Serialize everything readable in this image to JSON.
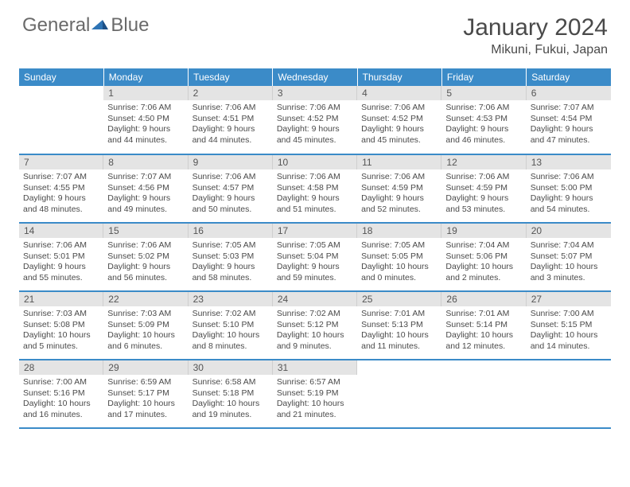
{
  "brand": {
    "part1": "General",
    "part2": "Blue"
  },
  "title": "January 2024",
  "location": "Mikuni, Fukui, Japan",
  "colors": {
    "header_bg": "#3b8bc8",
    "header_text": "#ffffff",
    "daynum_bg": "#e4e4e4",
    "row_border": "#3b8bc8",
    "body_text": "#4a4a4a"
  },
  "weekdays": [
    "Sunday",
    "Monday",
    "Tuesday",
    "Wednesday",
    "Thursday",
    "Friday",
    "Saturday"
  ],
  "weeks": [
    [
      {
        "n": "",
        "s": "",
        "t": "",
        "d": ""
      },
      {
        "n": "1",
        "s": "Sunrise: 7:06 AM",
        "t": "Sunset: 4:50 PM",
        "d": "Daylight: 9 hours and 44 minutes."
      },
      {
        "n": "2",
        "s": "Sunrise: 7:06 AM",
        "t": "Sunset: 4:51 PM",
        "d": "Daylight: 9 hours and 44 minutes."
      },
      {
        "n": "3",
        "s": "Sunrise: 7:06 AM",
        "t": "Sunset: 4:52 PM",
        "d": "Daylight: 9 hours and 45 minutes."
      },
      {
        "n": "4",
        "s": "Sunrise: 7:06 AM",
        "t": "Sunset: 4:52 PM",
        "d": "Daylight: 9 hours and 45 minutes."
      },
      {
        "n": "5",
        "s": "Sunrise: 7:06 AM",
        "t": "Sunset: 4:53 PM",
        "d": "Daylight: 9 hours and 46 minutes."
      },
      {
        "n": "6",
        "s": "Sunrise: 7:07 AM",
        "t": "Sunset: 4:54 PM",
        "d": "Daylight: 9 hours and 47 minutes."
      }
    ],
    [
      {
        "n": "7",
        "s": "Sunrise: 7:07 AM",
        "t": "Sunset: 4:55 PM",
        "d": "Daylight: 9 hours and 48 minutes."
      },
      {
        "n": "8",
        "s": "Sunrise: 7:07 AM",
        "t": "Sunset: 4:56 PM",
        "d": "Daylight: 9 hours and 49 minutes."
      },
      {
        "n": "9",
        "s": "Sunrise: 7:06 AM",
        "t": "Sunset: 4:57 PM",
        "d": "Daylight: 9 hours and 50 minutes."
      },
      {
        "n": "10",
        "s": "Sunrise: 7:06 AM",
        "t": "Sunset: 4:58 PM",
        "d": "Daylight: 9 hours and 51 minutes."
      },
      {
        "n": "11",
        "s": "Sunrise: 7:06 AM",
        "t": "Sunset: 4:59 PM",
        "d": "Daylight: 9 hours and 52 minutes."
      },
      {
        "n": "12",
        "s": "Sunrise: 7:06 AM",
        "t": "Sunset: 4:59 PM",
        "d": "Daylight: 9 hours and 53 minutes."
      },
      {
        "n": "13",
        "s": "Sunrise: 7:06 AM",
        "t": "Sunset: 5:00 PM",
        "d": "Daylight: 9 hours and 54 minutes."
      }
    ],
    [
      {
        "n": "14",
        "s": "Sunrise: 7:06 AM",
        "t": "Sunset: 5:01 PM",
        "d": "Daylight: 9 hours and 55 minutes."
      },
      {
        "n": "15",
        "s": "Sunrise: 7:06 AM",
        "t": "Sunset: 5:02 PM",
        "d": "Daylight: 9 hours and 56 minutes."
      },
      {
        "n": "16",
        "s": "Sunrise: 7:05 AM",
        "t": "Sunset: 5:03 PM",
        "d": "Daylight: 9 hours and 58 minutes."
      },
      {
        "n": "17",
        "s": "Sunrise: 7:05 AM",
        "t": "Sunset: 5:04 PM",
        "d": "Daylight: 9 hours and 59 minutes."
      },
      {
        "n": "18",
        "s": "Sunrise: 7:05 AM",
        "t": "Sunset: 5:05 PM",
        "d": "Daylight: 10 hours and 0 minutes."
      },
      {
        "n": "19",
        "s": "Sunrise: 7:04 AM",
        "t": "Sunset: 5:06 PM",
        "d": "Daylight: 10 hours and 2 minutes."
      },
      {
        "n": "20",
        "s": "Sunrise: 7:04 AM",
        "t": "Sunset: 5:07 PM",
        "d": "Daylight: 10 hours and 3 minutes."
      }
    ],
    [
      {
        "n": "21",
        "s": "Sunrise: 7:03 AM",
        "t": "Sunset: 5:08 PM",
        "d": "Daylight: 10 hours and 5 minutes."
      },
      {
        "n": "22",
        "s": "Sunrise: 7:03 AM",
        "t": "Sunset: 5:09 PM",
        "d": "Daylight: 10 hours and 6 minutes."
      },
      {
        "n": "23",
        "s": "Sunrise: 7:02 AM",
        "t": "Sunset: 5:10 PM",
        "d": "Daylight: 10 hours and 8 minutes."
      },
      {
        "n": "24",
        "s": "Sunrise: 7:02 AM",
        "t": "Sunset: 5:12 PM",
        "d": "Daylight: 10 hours and 9 minutes."
      },
      {
        "n": "25",
        "s": "Sunrise: 7:01 AM",
        "t": "Sunset: 5:13 PM",
        "d": "Daylight: 10 hours and 11 minutes."
      },
      {
        "n": "26",
        "s": "Sunrise: 7:01 AM",
        "t": "Sunset: 5:14 PM",
        "d": "Daylight: 10 hours and 12 minutes."
      },
      {
        "n": "27",
        "s": "Sunrise: 7:00 AM",
        "t": "Sunset: 5:15 PM",
        "d": "Daylight: 10 hours and 14 minutes."
      }
    ],
    [
      {
        "n": "28",
        "s": "Sunrise: 7:00 AM",
        "t": "Sunset: 5:16 PM",
        "d": "Daylight: 10 hours and 16 minutes."
      },
      {
        "n": "29",
        "s": "Sunrise: 6:59 AM",
        "t": "Sunset: 5:17 PM",
        "d": "Daylight: 10 hours and 17 minutes."
      },
      {
        "n": "30",
        "s": "Sunrise: 6:58 AM",
        "t": "Sunset: 5:18 PM",
        "d": "Daylight: 10 hours and 19 minutes."
      },
      {
        "n": "31",
        "s": "Sunrise: 6:57 AM",
        "t": "Sunset: 5:19 PM",
        "d": "Daylight: 10 hours and 21 minutes."
      },
      {
        "n": "",
        "s": "",
        "t": "",
        "d": ""
      },
      {
        "n": "",
        "s": "",
        "t": "",
        "d": ""
      },
      {
        "n": "",
        "s": "",
        "t": "",
        "d": ""
      }
    ]
  ]
}
